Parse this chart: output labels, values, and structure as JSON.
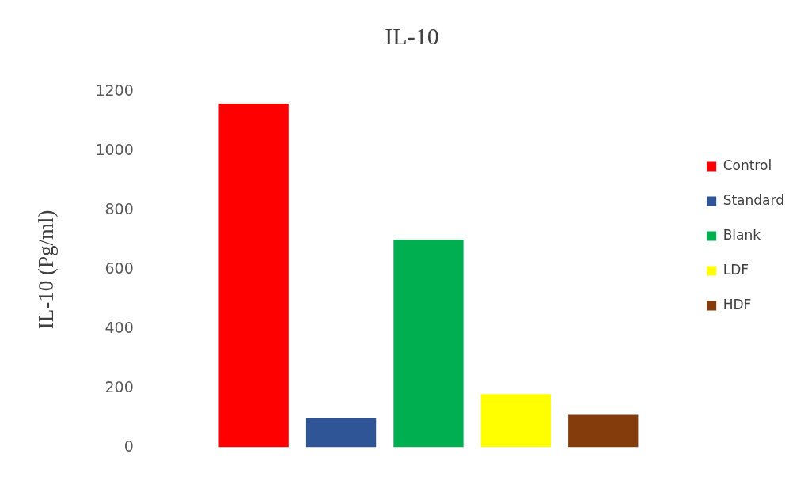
{
  "chart_data": {
    "type": "bar",
    "title": "IL-10",
    "ylabel": "IL-10 (Pg/ml)",
    "categories": [
      null
    ],
    "series": [
      {
        "name": "Control",
        "color": "#ff0000",
        "values": [
          1160
        ]
      },
      {
        "name": "Standard",
        "color": "#2f5597",
        "values": [
          100
        ]
      },
      {
        "name": "Blank",
        "color": "#00b050",
        "values": [
          700
        ]
      },
      {
        "name": "LDF",
        "color": "#ffff00",
        "values": [
          180
        ]
      },
      {
        "name": "HDF",
        "color": "#843c0c",
        "values": [
          110
        ]
      }
    ],
    "ylim": [
      0,
      1200
    ],
    "yticks": [
      0,
      200,
      400,
      600,
      800,
      1000,
      1200
    ],
    "grid": false,
    "legend": "right",
    "tick_labels": "y"
  }
}
